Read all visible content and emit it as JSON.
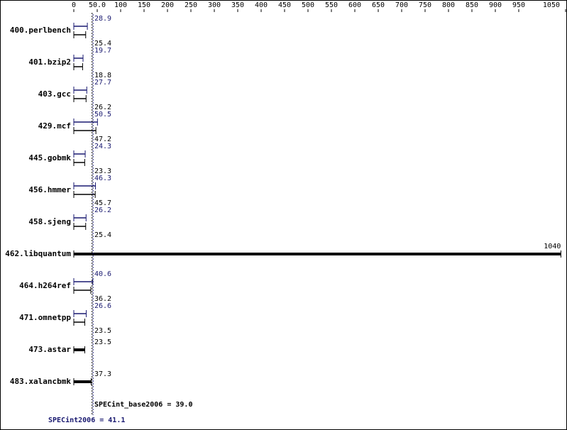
{
  "chart_data": {
    "type": "bar",
    "categories": [
      "400.perlbench",
      "401.bzip2",
      "403.gcc",
      "429.mcf",
      "445.gobmk",
      "456.hmmer",
      "458.sjeng",
      "462.libquantum",
      "464.h264ref",
      "471.omnetpp",
      "473.astar",
      "483.xalancbmk"
    ],
    "series": [
      {
        "name": "SPECint2006",
        "color": "#191970",
        "values": [
          28.9,
          19.7,
          27.7,
          50.5,
          24.3,
          46.3,
          26.2,
          null,
          40.6,
          26.6,
          null,
          null
        ]
      },
      {
        "name": "SPECint_base2006",
        "color": "#000000",
        "values": [
          25.4,
          18.8,
          26.2,
          47.2,
          23.3,
          45.7,
          25.4,
          1040,
          36.2,
          23.5,
          23.5,
          37.3
        ]
      }
    ],
    "xlim": [
      0,
      1050
    ],
    "xticks": [
      0,
      {
        "value": 50,
        "label": "50.0"
      },
      100,
      150,
      200,
      250,
      300,
      350,
      400,
      450,
      500,
      550,
      600,
      650,
      700,
      750,
      800,
      850,
      900,
      950,
      1050
    ],
    "base_mean": 39.0,
    "base_mean_label": "SPECint_base2006 = 39.0",
    "peak_mean": 41.1,
    "peak_mean_label": "SPECint2006 = 41.1"
  }
}
